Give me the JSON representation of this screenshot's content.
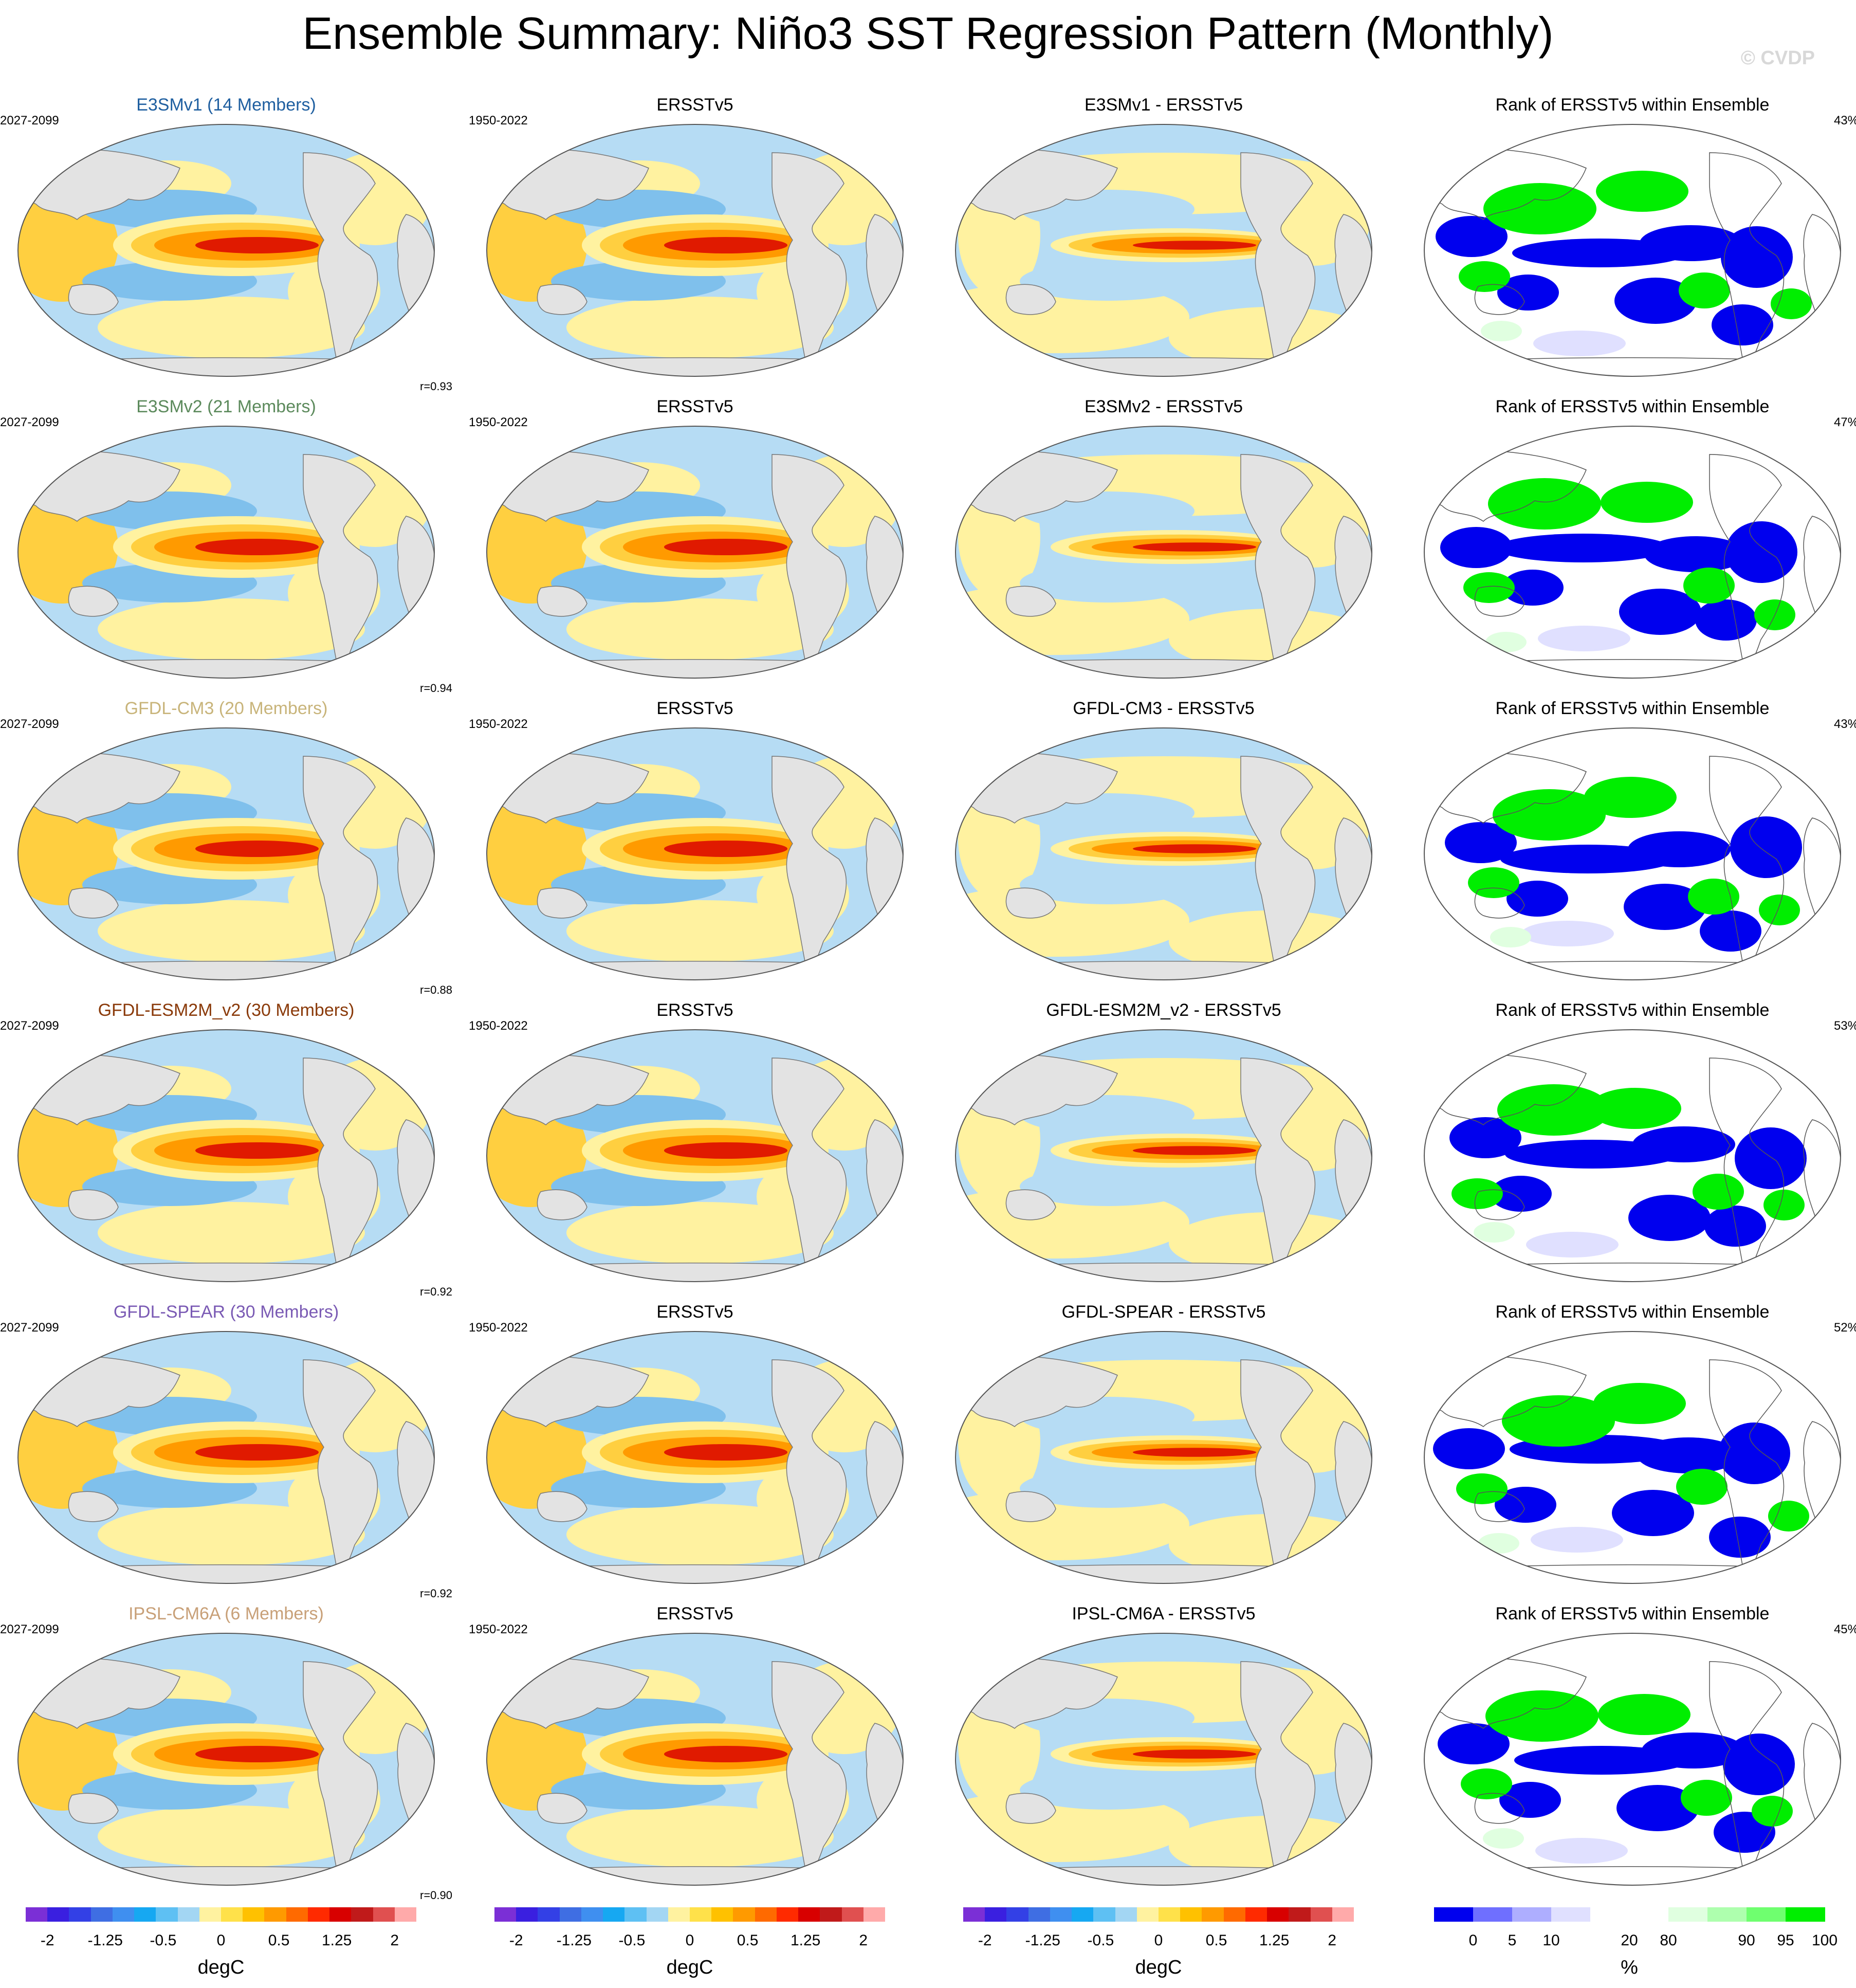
{
  "title": "Ensemble Summary: Niño3 SST Regression Pattern (Monthly)",
  "watermark": "© CVDP",
  "rows": [
    {
      "model": "E3SMv1 (14 Members)",
      "model_color": "#1f5fa0",
      "years": "2027-2099",
      "obs_title": "ERSSTv5",
      "obs_years": "1950-2022",
      "diff_title": "E3SMv1 - ERSSTv5",
      "rank_title": "Rank of ERSSTv5 within Ensemble",
      "rank_pct": "43%",
      "corr": "r=0.93"
    },
    {
      "model": "E3SMv2 (21 Members)",
      "model_color": "#5c8a5c",
      "years": "2027-2099",
      "obs_title": "ERSSTv5",
      "obs_years": "1950-2022",
      "diff_title": "E3SMv2 - ERSSTv5",
      "rank_title": "Rank of ERSSTv5 within Ensemble",
      "rank_pct": "47%",
      "corr": "r=0.94"
    },
    {
      "model": "GFDL-CM3 (20 Members)",
      "model_color": "#c8b47a",
      "years": "2027-2099",
      "obs_title": "ERSSTv5",
      "obs_years": "1950-2022",
      "diff_title": "GFDL-CM3 - ERSSTv5",
      "rank_title": "Rank of ERSSTv5 within Ensemble",
      "rank_pct": "43%",
      "corr": "r=0.88"
    },
    {
      "model": "GFDL-ESM2M_v2 (30 Members)",
      "model_color": "#8a3a0a",
      "years": "2027-2099",
      "obs_title": "ERSSTv5",
      "obs_years": "1950-2022",
      "diff_title": "GFDL-ESM2M_v2 - ERSSTv5",
      "rank_title": "Rank of ERSSTv5 within Ensemble",
      "rank_pct": "53%",
      "corr": "r=0.92"
    },
    {
      "model": "GFDL-SPEAR (30 Members)",
      "model_color": "#7a5ab4",
      "years": "2027-2099",
      "obs_title": "ERSSTv5",
      "obs_years": "1950-2022",
      "diff_title": "GFDL-SPEAR - ERSSTv5",
      "rank_title": "Rank of ERSSTv5 within Ensemble",
      "rank_pct": "52%",
      "corr": "r=0.92"
    },
    {
      "model": "IPSL-CM6A (6 Members)",
      "model_color": "#c8a078",
      "years": "2027-2099",
      "obs_title": "ERSSTv5",
      "obs_years": "1950-2022",
      "diff_title": "IPSL-CM6A - ERSSTv5",
      "rank_title": "Rank of ERSSTv5 within Ensemble",
      "rank_pct": "45%",
      "corr": "r=0.90"
    }
  ],
  "colorbar_sst": {
    "colors": [
      "#7b2fd6",
      "#3a1fe0",
      "#3340e6",
      "#3f6ee3",
      "#3f8ff0",
      "#16a8f2",
      "#5ec0f3",
      "#a3d6f3",
      "#fff2a0",
      "#ffe14a",
      "#ffc100",
      "#ff9a00",
      "#ff6a00",
      "#ff2a00",
      "#d80000",
      "#c01a1a",
      "#e05050",
      "#ffaaaa"
    ],
    "ticks": [
      "-2",
      "-1.25",
      "-0.5",
      "0",
      "0.5",
      "1.25",
      "2"
    ],
    "unit": "degC"
  },
  "colorbar_rank": {
    "colors": [
      "#0000ee",
      "#6f6fff",
      "#aeaeff",
      "#e0e0ff",
      "#ffffff",
      "#ffffff",
      "#e0ffe0",
      "#aeffae",
      "#6fff6f",
      "#00ee00"
    ],
    "ticks": [
      "0",
      "5",
      "10",
      "20",
      "80",
      "90",
      "95",
      "100"
    ],
    "unit": "%"
  },
  "palette": {
    "land": "#e3e3e3",
    "pos_weak": "#fff2a0",
    "pos_mid": "#ffcf40",
    "pos_strong": "#ff9a00",
    "pos_peak": "#e01a00",
    "neg_weak": "#b6dcf4",
    "neg_mid": "#7fc0ec",
    "neg_strong": "#3fa0e6",
    "rank_low": "#0000ee",
    "rank_high": "#00ee00"
  }
}
